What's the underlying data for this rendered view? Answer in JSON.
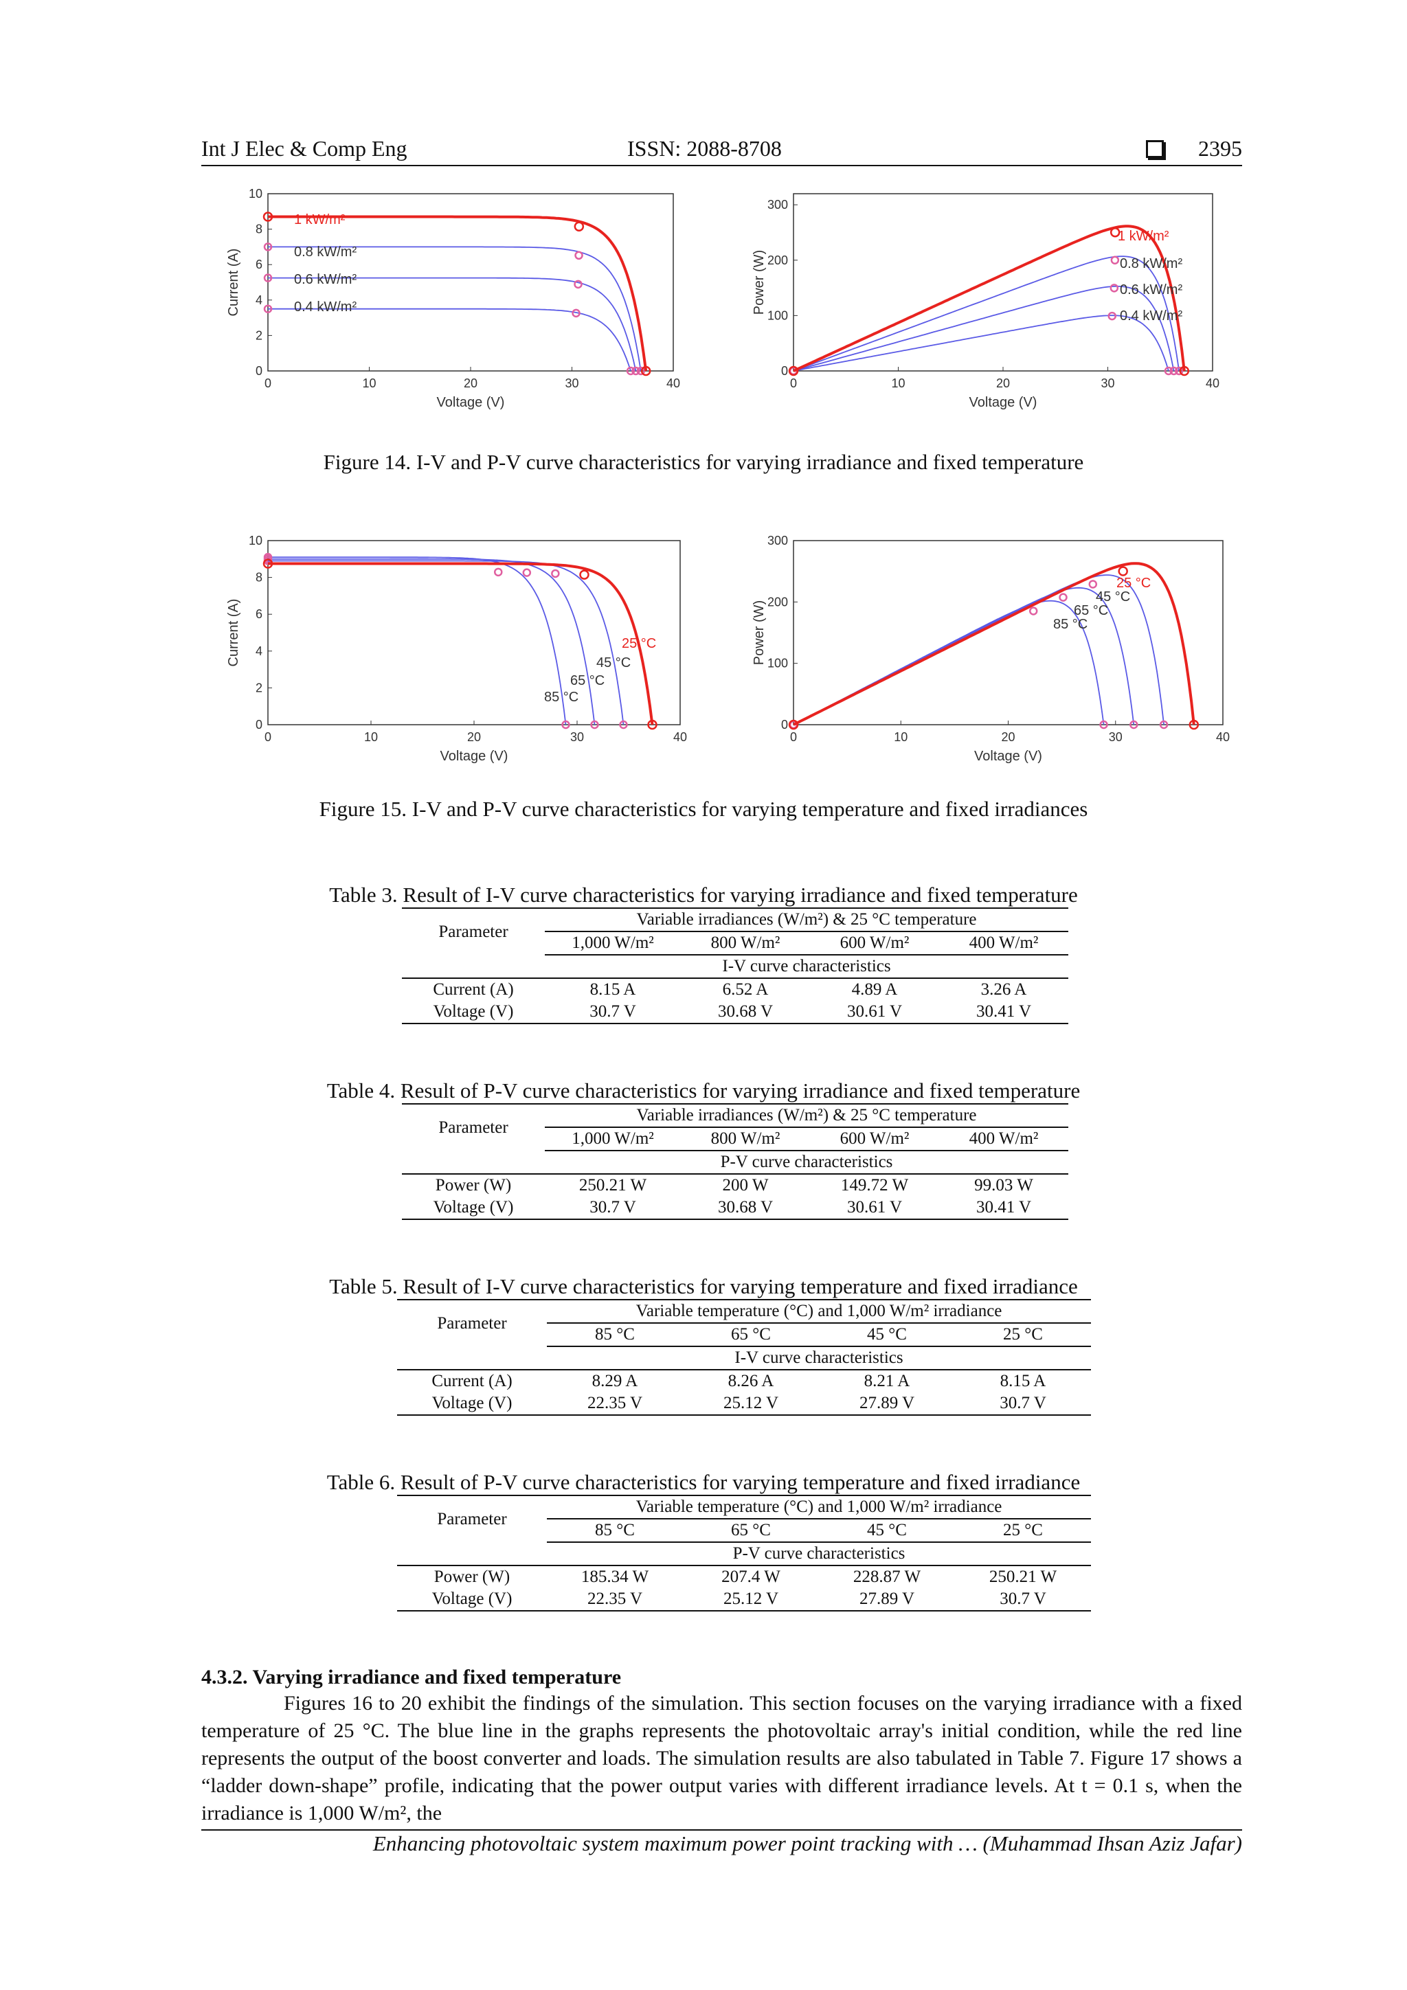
{
  "header": {
    "journal": "Int J Elec & Comp Eng",
    "issn": "ISSN: 2088-8708",
    "page": "2395"
  },
  "figures": {
    "fig14": {
      "caption": "Figure 14. I-V and P-V curve characteristics for varying irradiance and fixed temperature",
      "iv": {
        "xlabel": "Voltage (V)",
        "ylabel": "Current (A)",
        "xticks": [
          "0",
          "10",
          "20",
          "30",
          "40"
        ],
        "yticks": [
          "0",
          "2",
          "4",
          "6",
          "8",
          "10"
        ],
        "xlim": [
          0,
          40
        ],
        "ylim": [
          0,
          10
        ],
        "labels": [
          "1 kW/m²",
          "0.8 kW/m²",
          "0.6 kW/m²",
          "0.4 kW/m²"
        ],
        "series": [
          {
            "isc": 8.7,
            "voc": 37.3,
            "vmp": 30.7,
            "imp": 8.15,
            "color": "#e8231f"
          },
          {
            "isc": 7.0,
            "voc": 36.8,
            "vmp": 30.68,
            "imp": 6.52,
            "color": "#5a5ae6"
          },
          {
            "isc": 5.25,
            "voc": 36.3,
            "vmp": 30.61,
            "imp": 4.89,
            "color": "#5a5ae6"
          },
          {
            "isc": 3.5,
            "voc": 35.8,
            "vmp": 30.41,
            "imp": 3.26,
            "color": "#5a5ae6"
          }
        ]
      },
      "pv": {
        "xlabel": "Voltage (V)",
        "ylabel": "Power (W)",
        "xticks": [
          "0",
          "10",
          "20",
          "30",
          "40"
        ],
        "yticks": [
          "0",
          "100",
          "200",
          "300"
        ],
        "xlim": [
          0,
          40
        ],
        "ylim": [
          0,
          320
        ],
        "labels": [
          "1 kW/m²",
          "0.8 kW/m²",
          "0.6 kW/m²",
          "0.4 kW/m²"
        ]
      }
    },
    "fig15": {
      "caption": "Figure 15. I-V and P-V curve characteristics for varying temperature and fixed irradiances",
      "iv": {
        "xlabel": "Voltage (V)",
        "ylabel": "Current (A)",
        "xticks": [
          "0",
          "10",
          "20",
          "30",
          "40"
        ],
        "yticks": [
          "0",
          "2",
          "4",
          "6",
          "8",
          "10"
        ],
        "xlim": [
          0,
          40
        ],
        "ylim": [
          0,
          10
        ],
        "labels": [
          "25 °C",
          "45 °C",
          "65 °C",
          "85 °C"
        ],
        "series": [
          {
            "isc": 8.75,
            "voc": 37.3,
            "vmp": 30.7,
            "imp": 8.15,
            "color": "#e8231f"
          },
          {
            "isc": 8.9,
            "voc": 34.5,
            "vmp": 27.89,
            "imp": 8.21,
            "color": "#5a5ae6"
          },
          {
            "isc": 9.0,
            "voc": 31.7,
            "vmp": 25.12,
            "imp": 8.26,
            "color": "#5a5ae6"
          },
          {
            "isc": 9.1,
            "voc": 28.9,
            "vmp": 22.35,
            "imp": 8.29,
            "color": "#5a5ae6"
          }
        ]
      },
      "pv": {
        "xlabel": "Voltage (V)",
        "ylabel": "Power (W)",
        "xticks": [
          "0",
          "10",
          "20",
          "30",
          "40"
        ],
        "yticks": [
          "0",
          "100",
          "200",
          "300"
        ],
        "xlim": [
          0,
          40
        ],
        "ylim": [
          0,
          300
        ],
        "labels": [
          "25 °C",
          "45 °C",
          "65 °C",
          "85 °C"
        ]
      }
    }
  },
  "tables": [
    {
      "caption": "Table 3. Result of I-V curve characteristics for varying irradiance and fixed temperature",
      "group": "Variable irradiances (W/m²) & 25 °C temperature",
      "param": "Parameter",
      "cols": [
        "1,000 W/m²",
        "800 W/m²",
        "600 W/m²",
        "400 W/m²"
      ],
      "sub": "I-V curve characteristics",
      "rows": [
        {
          "label": "Current (A)",
          "values": [
            "8.15 A",
            "6.52 A",
            "4.89 A",
            "3.26 A"
          ]
        },
        {
          "label": "Voltage (V)",
          "values": [
            "30.7 V",
            "30.68 V",
            "30.61 V",
            "30.41 V"
          ]
        }
      ]
    },
    {
      "caption": "Table 4. Result of P-V curve characteristics for varying irradiance and fixed temperature",
      "group": "Variable irradiances (W/m²) & 25 °C temperature",
      "param": "Parameter",
      "cols": [
        "1,000 W/m²",
        "800 W/m²",
        "600 W/m²",
        "400 W/m²"
      ],
      "sub": "P-V curve characteristics",
      "rows": [
        {
          "label": "Power (W)",
          "values": [
            "250.21 W",
            "200 W",
            "149.72 W",
            "99.03 W"
          ]
        },
        {
          "label": "Voltage (V)",
          "values": [
            "30.7 V",
            "30.68 V",
            "30.61 V",
            "30.41 V"
          ]
        }
      ]
    },
    {
      "caption": "Table 5. Result of I-V curve characteristics for varying temperature and fixed irradiance",
      "group": "Variable temperature (°C) and 1,000 W/m² irradiance",
      "param": "Parameter",
      "cols": [
        "85 °C",
        "65 °C",
        "45 °C",
        "25 °C"
      ],
      "sub": "I-V curve characteristics",
      "rows": [
        {
          "label": "Current (A)",
          "values": [
            "8.29 A",
            "8.26 A",
            "8.21 A",
            "8.15 A"
          ]
        },
        {
          "label": "Voltage (V)",
          "values": [
            "22.35 V",
            "25.12 V",
            "27.89 V",
            "30.7 V"
          ]
        }
      ]
    },
    {
      "caption": "Table 6. Result of P-V curve characteristics for varying temperature and fixed irradiance",
      "group": "Variable temperature (°C) and 1,000 W/m² irradiance",
      "param": "Parameter",
      "cols": [
        "85 °C",
        "65 °C",
        "45 °C",
        "25 °C"
      ],
      "sub": "P-V curve characteristics",
      "rows": [
        {
          "label": "Power (W)",
          "values": [
            "185.34 W",
            "207.4 W",
            "228.87 W",
            "250.21 W"
          ]
        },
        {
          "label": "Voltage (V)",
          "values": [
            "22.35 V",
            "25.12 V",
            "27.89 V",
            "30.7 V"
          ]
        }
      ]
    }
  ],
  "section": {
    "title": "4.3.2. Varying irradiance and fixed temperature",
    "paragraph": "Figures 16 to 20 exhibit the findings of the simulation. This section focuses on the varying irradiance with a fixed temperature of 25 °C. The blue line in the graphs represents the photovoltaic array's initial condition, while the red line represents the output of the boost converter and loads. The simulation results are also tabulated in Table 7. Figure 17 shows a “ladder down-shape” profile, indicating that the power output varies with different irradiance levels. At t = 0.1 s, when the irradiance is 1,000 W/m², the"
  },
  "footer": "Enhancing photovoltaic system maximum power point tracking with … (Muhammad Ihsan Aziz Jafar)"
}
